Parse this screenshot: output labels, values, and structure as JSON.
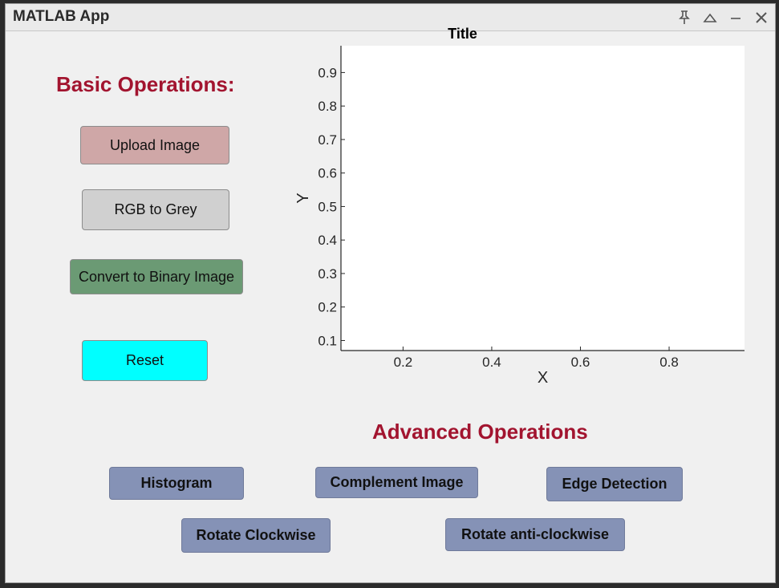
{
  "window": {
    "title": "MATLAB App",
    "controls": [
      {
        "name": "pin-icon",
        "glyph": "📌"
      },
      {
        "name": "collapse-icon",
        "glyph": "△"
      },
      {
        "name": "minimize-icon",
        "glyph": "−"
      },
      {
        "name": "close-icon",
        "glyph": "✕"
      }
    ]
  },
  "basic": {
    "heading": "Basic Operations:",
    "upload_label": "Upload Image",
    "grey_label": "RGB to Grey",
    "binary_label": "Convert to Binary Image",
    "reset_label": "Reset"
  },
  "advanced": {
    "heading": "Advanced Operations",
    "histogram_label": "Histogram",
    "complement_label": "Complement Image",
    "edge_label": "Edge Detection",
    "rotate_cw_label": "Rotate Clockwise",
    "rotate_acw_label": "Rotate anti-clockwise"
  },
  "colors": {
    "heading": "#a2142f",
    "upload_bg": "#cfa7a7",
    "grey_bg": "#d0d0d0",
    "binary_bg": "#6b9a74",
    "reset_bg": "#00ffff",
    "advanced_bg": "#8592b6"
  },
  "chart_data": {
    "type": "line",
    "title": "Title",
    "xlabel": "X",
    "ylabel": "Y",
    "xlim": [
      0.06,
      0.97
    ],
    "ylim": [
      0.07,
      0.98
    ],
    "xticks": [
      0.2,
      0.4,
      0.6,
      0.8
    ],
    "yticks": [
      0.1,
      0.2,
      0.3,
      0.4,
      0.5,
      0.6,
      0.7,
      0.8,
      0.9
    ],
    "series": []
  }
}
